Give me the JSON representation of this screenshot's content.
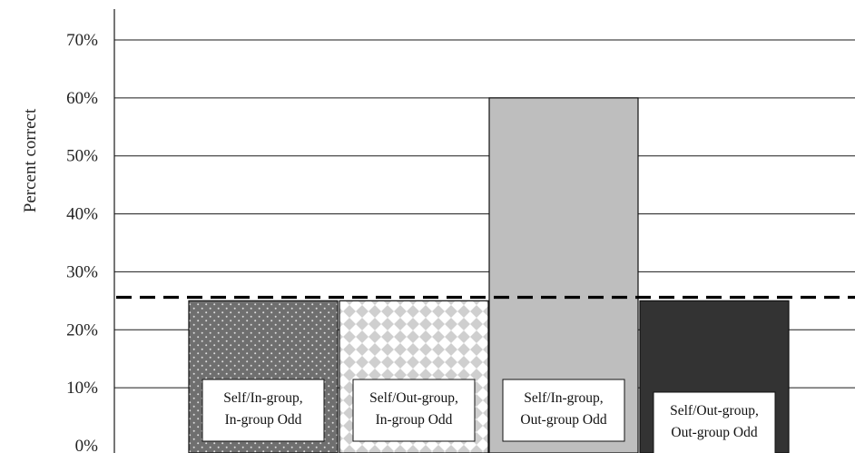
{
  "chart_data": {
    "type": "bar",
    "title": "",
    "ylabel": "Percent correct",
    "xlabel": "",
    "ylim": [
      0,
      70
    ],
    "y_ticks": [
      "0%",
      "10%",
      "20%",
      "30%",
      "40%",
      "50%",
      "60%",
      "70%"
    ],
    "grid": true,
    "categories": [
      [
        "Self/In-group,",
        "In-group Odd"
      ],
      [
        "Self/Out-group,",
        "In-group Odd"
      ],
      [
        "Self/In-group,",
        "Out-group Odd"
      ],
      [
        "Self/Out-group,",
        "Out-group Odd"
      ]
    ],
    "values": [
      25,
      25,
      60,
      25
    ],
    "bar_styles": [
      "dots",
      "diamonds",
      "light-gray",
      "dark-gray"
    ],
    "colors": [
      "#7a7a7a",
      "#d0d0d0",
      "#bebebe",
      "#333333"
    ],
    "reference_line": {
      "value": 25.6,
      "style": "dashed"
    }
  }
}
